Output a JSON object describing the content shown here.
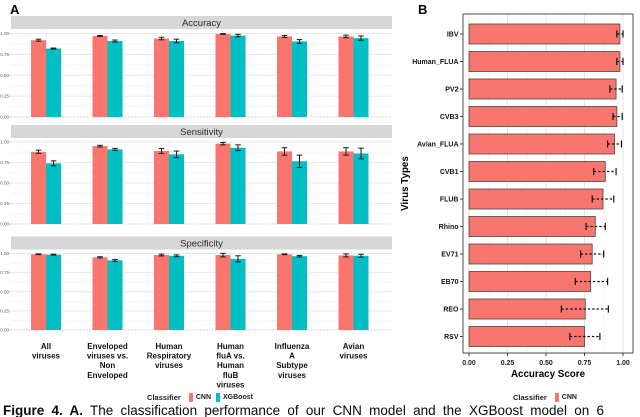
{
  "figure": {
    "panel_a_tag": "A",
    "panel_b_tag": "B",
    "caption_prefix": "Figure 4. A.",
    "caption_text": "The classification performance of our CNN model and the XGBoost model on 6"
  },
  "colors": {
    "cnn": "#F8766D",
    "xgboost": "#00BFC4",
    "strip_bg": "#d7d7d7",
    "panel_border": "#4d4d4d",
    "error_bar": "#1a1a1a",
    "grid_major": "#e8e8e8",
    "grid_minor": "#f5f5f5"
  },
  "chart_data": [
    {
      "id": "panel_a",
      "type": "bar",
      "layout": "grouped-vertical-faceted",
      "facets": [
        "Accuracy",
        "Sensitivity",
        "Specificity"
      ],
      "categories": [
        "All viruses",
        "Enveloped viruses vs. Non Enveloped",
        "Human Respiratory viruses",
        "Human fluA vs. Human fluB viruses",
        "Influenza A Subtype viruses",
        "Avian viruses"
      ],
      "category_lines": [
        [
          "All",
          "viruses"
        ],
        [
          "Enveloped",
          "viruses vs.",
          "Non",
          "Enveloped"
        ],
        [
          "Human",
          "Respiratory",
          "viruses"
        ],
        [
          "Human",
          "fluA vs.",
          "Human",
          "fluB",
          "viruses"
        ],
        [
          "Influenza",
          "A",
          "Subtype",
          "viruses"
        ],
        [
          "Avian",
          "viruses"
        ]
      ],
      "ylim": [
        0,
        1
      ],
      "ytick_labels": [
        "0.00",
        "0.25",
        "0.50",
        "0.75",
        "1.00"
      ],
      "grid": true,
      "series": [
        {
          "name": "CNN",
          "color": "#F8766D",
          "values": [
            [
              0.92,
              0.97,
              0.94,
              0.995,
              0.965,
              0.965
            ],
            [
              0.88,
              0.95,
              0.89,
              0.98,
              0.885,
              0.885
            ],
            [
              0.99,
              0.95,
              0.98,
              0.98,
              0.99,
              0.975
            ]
          ],
          "errors": [
            [
              0.012,
              0.006,
              0.015,
              0.004,
              0.012,
              0.015
            ],
            [
              0.02,
              0.01,
              0.03,
              0.015,
              0.045,
              0.045
            ],
            [
              0.005,
              0.008,
              0.012,
              0.025,
              0.005,
              0.02
            ]
          ]
        },
        {
          "name": "XGBoost",
          "color": "#00BFC4",
          "values": [
            [
              0.82,
              0.91,
              0.91,
              0.975,
              0.905,
              0.945
            ],
            [
              0.74,
              0.91,
              0.85,
              0.93,
              0.765,
              0.86
            ],
            [
              0.985,
              0.91,
              0.97,
              0.93,
              0.965,
              0.97
            ]
          ],
          "errors": [
            [
              0.006,
              0.012,
              0.022,
              0.015,
              0.022,
              0.025
            ],
            [
              0.03,
              0.012,
              0.04,
              0.035,
              0.075,
              0.065
            ],
            [
              0.005,
              0.012,
              0.012,
              0.04,
              0.01,
              0.02
            ]
          ]
        }
      ],
      "legend": {
        "title": "Classifier",
        "entries": [
          {
            "label": "CNN",
            "color": "#F8766D"
          },
          {
            "label": "XGBoost",
            "color": "#00BFC4"
          }
        ]
      }
    },
    {
      "id": "panel_b",
      "type": "bar",
      "layout": "horizontal",
      "xlabel": "Accuracy Score",
      "ylabel": "Virus Types",
      "categories": [
        "IBV",
        "Human_FLUA",
        "PV2",
        "CVB3",
        "Avian_FLUA",
        "CVB1",
        "FLUB",
        "Rhino",
        "EV71",
        "EB70",
        "REO",
        "RSV"
      ],
      "values": [
        0.98,
        0.98,
        0.955,
        0.96,
        0.945,
        0.885,
        0.87,
        0.82,
        0.8,
        0.79,
        0.755,
        0.75
      ],
      "error_low": [
        0.96,
        0.96,
        0.915,
        0.935,
        0.9,
        0.81,
        0.8,
        0.76,
        0.725,
        0.69,
        0.6,
        0.655
      ],
      "error_high": [
        1.0,
        1.0,
        0.995,
        0.995,
        0.99,
        0.955,
        0.94,
        0.885,
        0.875,
        0.9,
        0.905,
        0.85
      ],
      "xlim": [
        0,
        1.06
      ],
      "xtick_labels": [
        "0.00",
        "0.25",
        "0.50",
        "0.75",
        "1.00"
      ],
      "grid": true,
      "bar_color": "#F8766D",
      "legend": {
        "title": "Classifier",
        "entries": [
          {
            "label": "CNN",
            "color": "#F8766D"
          }
        ]
      }
    }
  ]
}
